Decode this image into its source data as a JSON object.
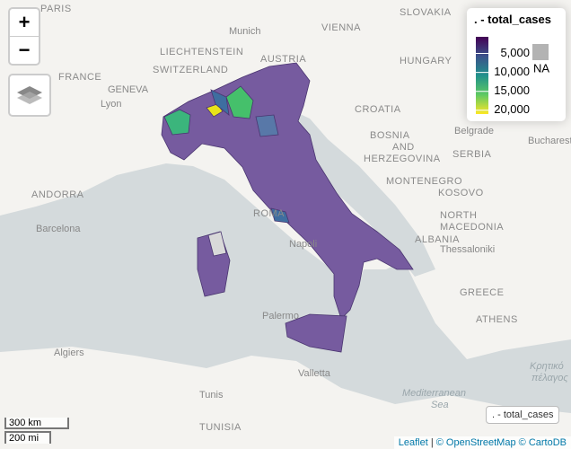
{
  "map": {
    "zoom_in": "+",
    "zoom_out": "−",
    "labels": [
      "PARIS",
      "SLOVAKIA",
      "Munich",
      "VIENNA",
      "LIECHTENSTEIN",
      "AUSTRIA",
      "SWITZERLAND",
      "FRANCE",
      "HUNGARY",
      "GENEVA",
      "Lyon",
      "CROATIA",
      "Belgrade",
      "Bucharest",
      "BOSNIA",
      "AND",
      "HERZEGOVINA",
      "SERBIA",
      "ANDORRA",
      "MONTENEGRO",
      "KOSOVO",
      "ROMA",
      "Barcelona",
      "NORTH",
      "MACEDONIA",
      "ALBANIA",
      "Napoli",
      "Thessaloniki",
      "GREECE",
      "Palermo",
      "ATHENS",
      "Algiers",
      "Valletta",
      "Tunis",
      "Mediterranean",
      "Sea",
      "TUNISIA",
      "Κρητικό",
      "πέλαγος"
    ],
    "legend": {
      "title": ". - total_cases",
      "domain": [
        600,
        21000
      ],
      "ticks": [
        {
          "value": 5000,
          "label": "5,000"
        },
        {
          "value": 10000,
          "label": "10,000"
        },
        {
          "value": 15000,
          "label": "15,000"
        },
        {
          "value": 20000,
          "label": "20,000"
        }
      ],
      "na": "NA"
    },
    "layer_button": ". - total_cases",
    "scale": [
      "300 km",
      "200 mi"
    ],
    "attribution": {
      "leaflet": "Leaflet",
      "sep": "|",
      "osm": "© OpenStreetMap",
      "carto": "© CartoDB"
    }
  }
}
